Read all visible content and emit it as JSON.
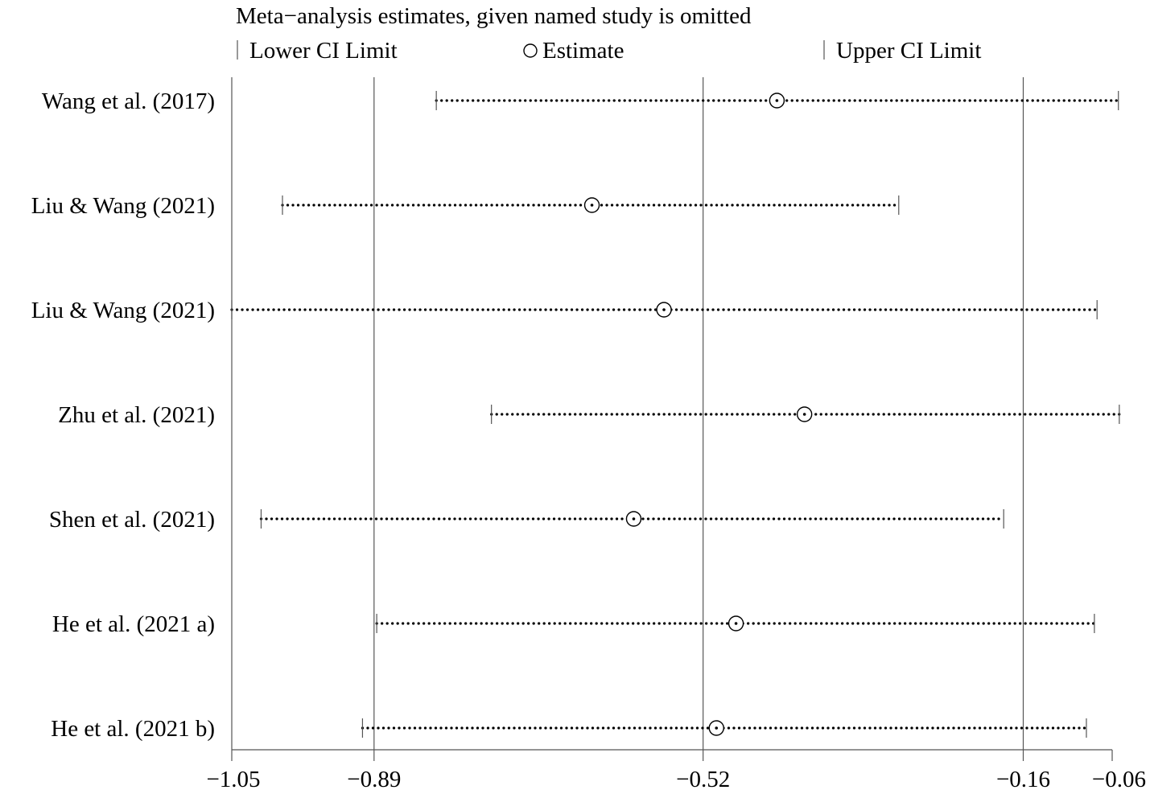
{
  "chart_data": {
    "type": "scatter",
    "title": "Meta−analysis estimates, given named study is omitted",
    "legend": {
      "placement": "top",
      "items": [
        {
          "symbol": "bar",
          "label": "Lower CI Limit"
        },
        {
          "symbol": "circle",
          "label": "Estimate"
        },
        {
          "symbol": "bar",
          "label": "Upper CI Limit"
        }
      ]
    },
    "xlim": [
      -1.05,
      -0.06
    ],
    "xticks": [
      -1.05,
      -0.89,
      -0.52,
      -0.16,
      -0.06
    ],
    "xtick_labels": [
      "−1.05",
      "−0.89",
      "−0.52",
      "−0.16",
      "−0.06"
    ],
    "reference_lines": [
      -0.89,
      -0.52,
      -0.16
    ],
    "grid": false,
    "studies": [
      {
        "label": "Wang et al. (2017)",
        "lower": -0.82,
        "estimate": -0.437,
        "upper": -0.053
      },
      {
        "label": "Liu & Wang (2021)",
        "lower": -0.993,
        "estimate": -0.645,
        "upper": -0.3
      },
      {
        "label": "Liu & Wang (2021)",
        "lower": -1.05,
        "estimate": -0.564,
        "upper": -0.077
      },
      {
        "label": "Zhu et al. (2021)",
        "lower": -0.758,
        "estimate": -0.406,
        "upper": -0.052
      },
      {
        "label": "Shen et al. (2021)",
        "lower": -1.017,
        "estimate": -0.598,
        "upper": -0.182
      },
      {
        "label": "He et al. (2021 a)",
        "lower": -0.887,
        "estimate": -0.483,
        "upper": -0.08
      },
      {
        "label": "He et al. (2021 b)",
        "lower": -0.903,
        "estimate": -0.505,
        "upper": -0.089
      }
    ]
  }
}
